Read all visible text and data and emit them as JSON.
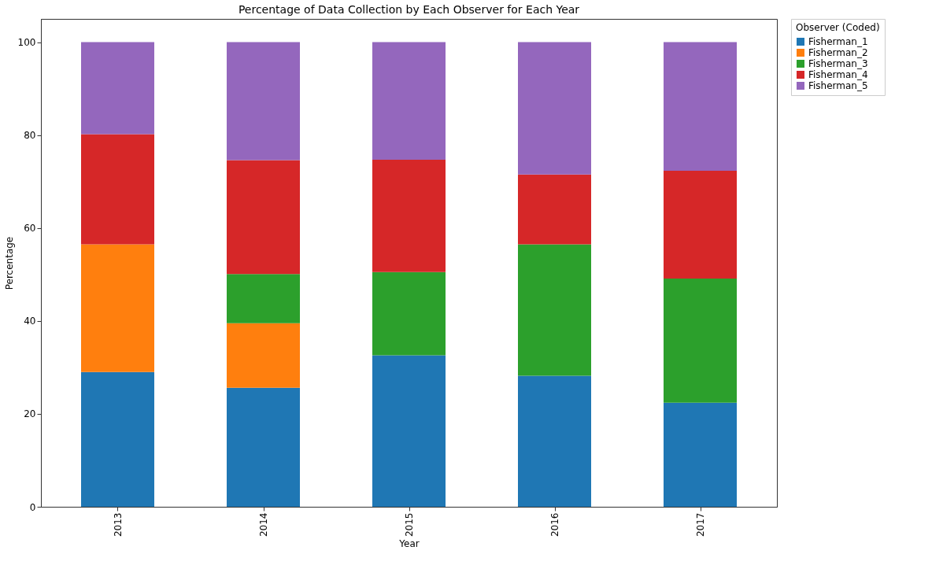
{
  "chart_data": {
    "type": "bar",
    "stacked": true,
    "title": "Percentage of Data Collection by Each Observer for Each Year",
    "xlabel": "Year",
    "ylabel": "Percentage",
    "legend_title": "Observer (Coded)",
    "legend": "top right",
    "grid": false,
    "categories": [
      "2013",
      "2014",
      "2015",
      "2016",
      "2017"
    ],
    "ylim": [
      0,
      105
    ],
    "yticks": [
      0,
      20,
      40,
      60,
      80,
      100
    ],
    "series": [
      {
        "name": "Fisherman_1",
        "color": "#1f77b4",
        "values": [
          29.0,
          25.6,
          32.6,
          28.2,
          22.4
        ]
      },
      {
        "name": "Fisherman_2",
        "color": "#ff7f0e",
        "values": [
          27.5,
          13.9,
          0,
          0,
          0
        ]
      },
      {
        "name": "Fisherman_3",
        "color": "#2ca02c",
        "values": [
          0,
          10.6,
          17.9,
          28.3,
          26.7
        ]
      },
      {
        "name": "Fisherman_4",
        "color": "#d62728",
        "values": [
          23.7,
          24.5,
          24.2,
          15.0,
          23.2
        ]
      },
      {
        "name": "Fisherman_5",
        "color": "#9467bd",
        "values": [
          19.8,
          25.4,
          25.3,
          28.5,
          27.7
        ]
      }
    ]
  }
}
